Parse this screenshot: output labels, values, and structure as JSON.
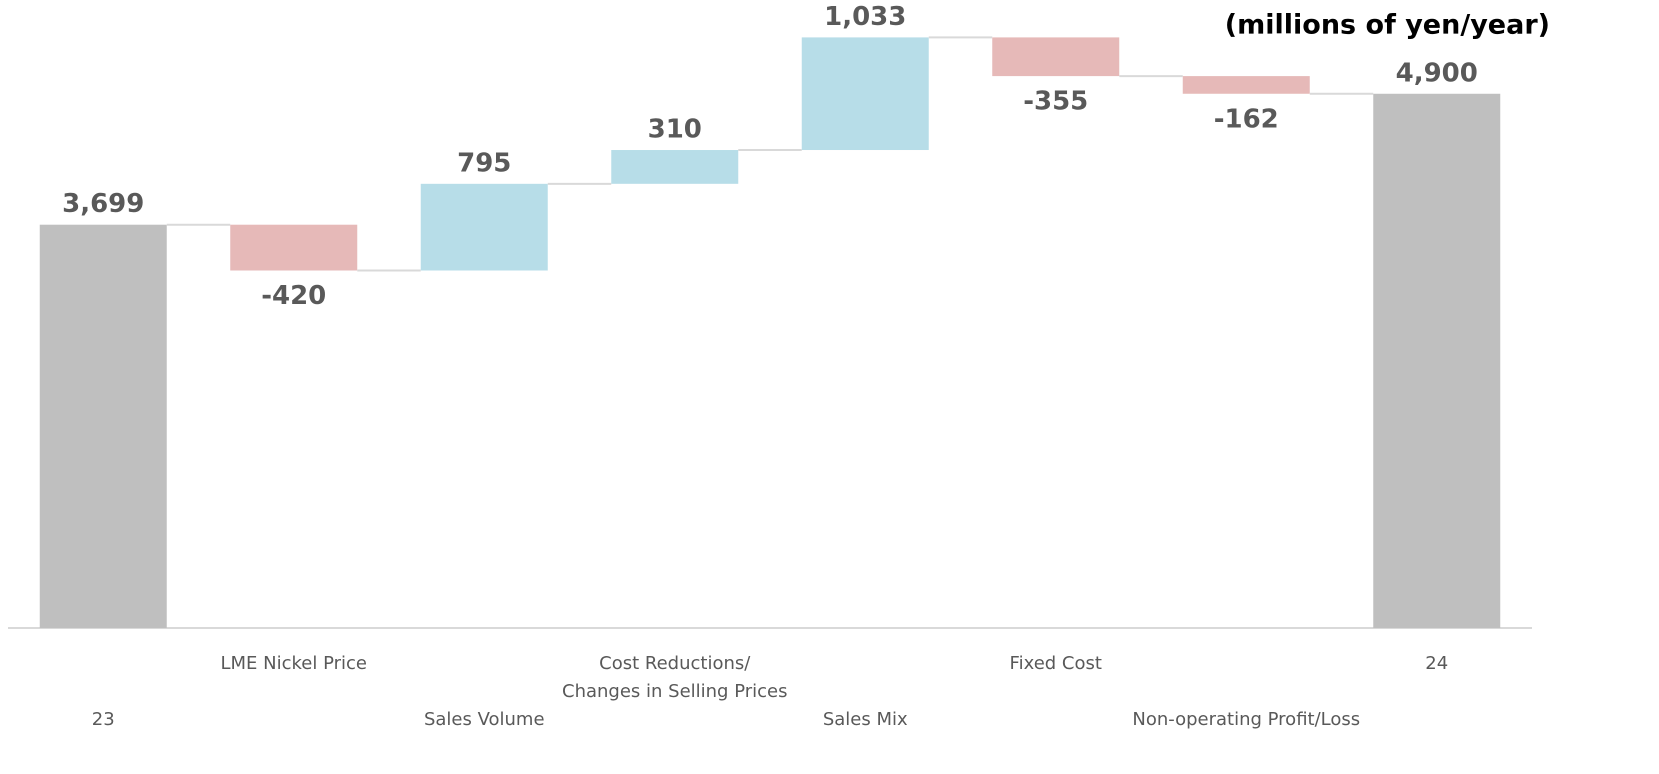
{
  "chart_data": {
    "type": "waterfall",
    "annotation": "(millions of yen/year)",
    "categories": [
      "23",
      "LME Nickel Price",
      "Sales Volume",
      "Cost Reductions/\nChanges in Selling Prices",
      "Sales Mix",
      "Fixed Cost",
      "Non-operating Profit/Loss",
      "24"
    ],
    "values": [
      3699,
      -420,
      795,
      310,
      1033,
      -355,
      -162,
      4900
    ],
    "value_labels": [
      "3,699",
      "-420",
      "795",
      "310",
      "1,033",
      "-355",
      "-162",
      "4,900"
    ],
    "measure": [
      "absolute",
      "relative",
      "relative",
      "relative",
      "relative",
      "relative",
      "relative",
      "absolute"
    ],
    "colors": {
      "absolute": "#bfbfbf",
      "increase": "#b7dde8",
      "decrease": "#e6b9b8"
    },
    "ylim": [
      0,
      5760
    ]
  }
}
